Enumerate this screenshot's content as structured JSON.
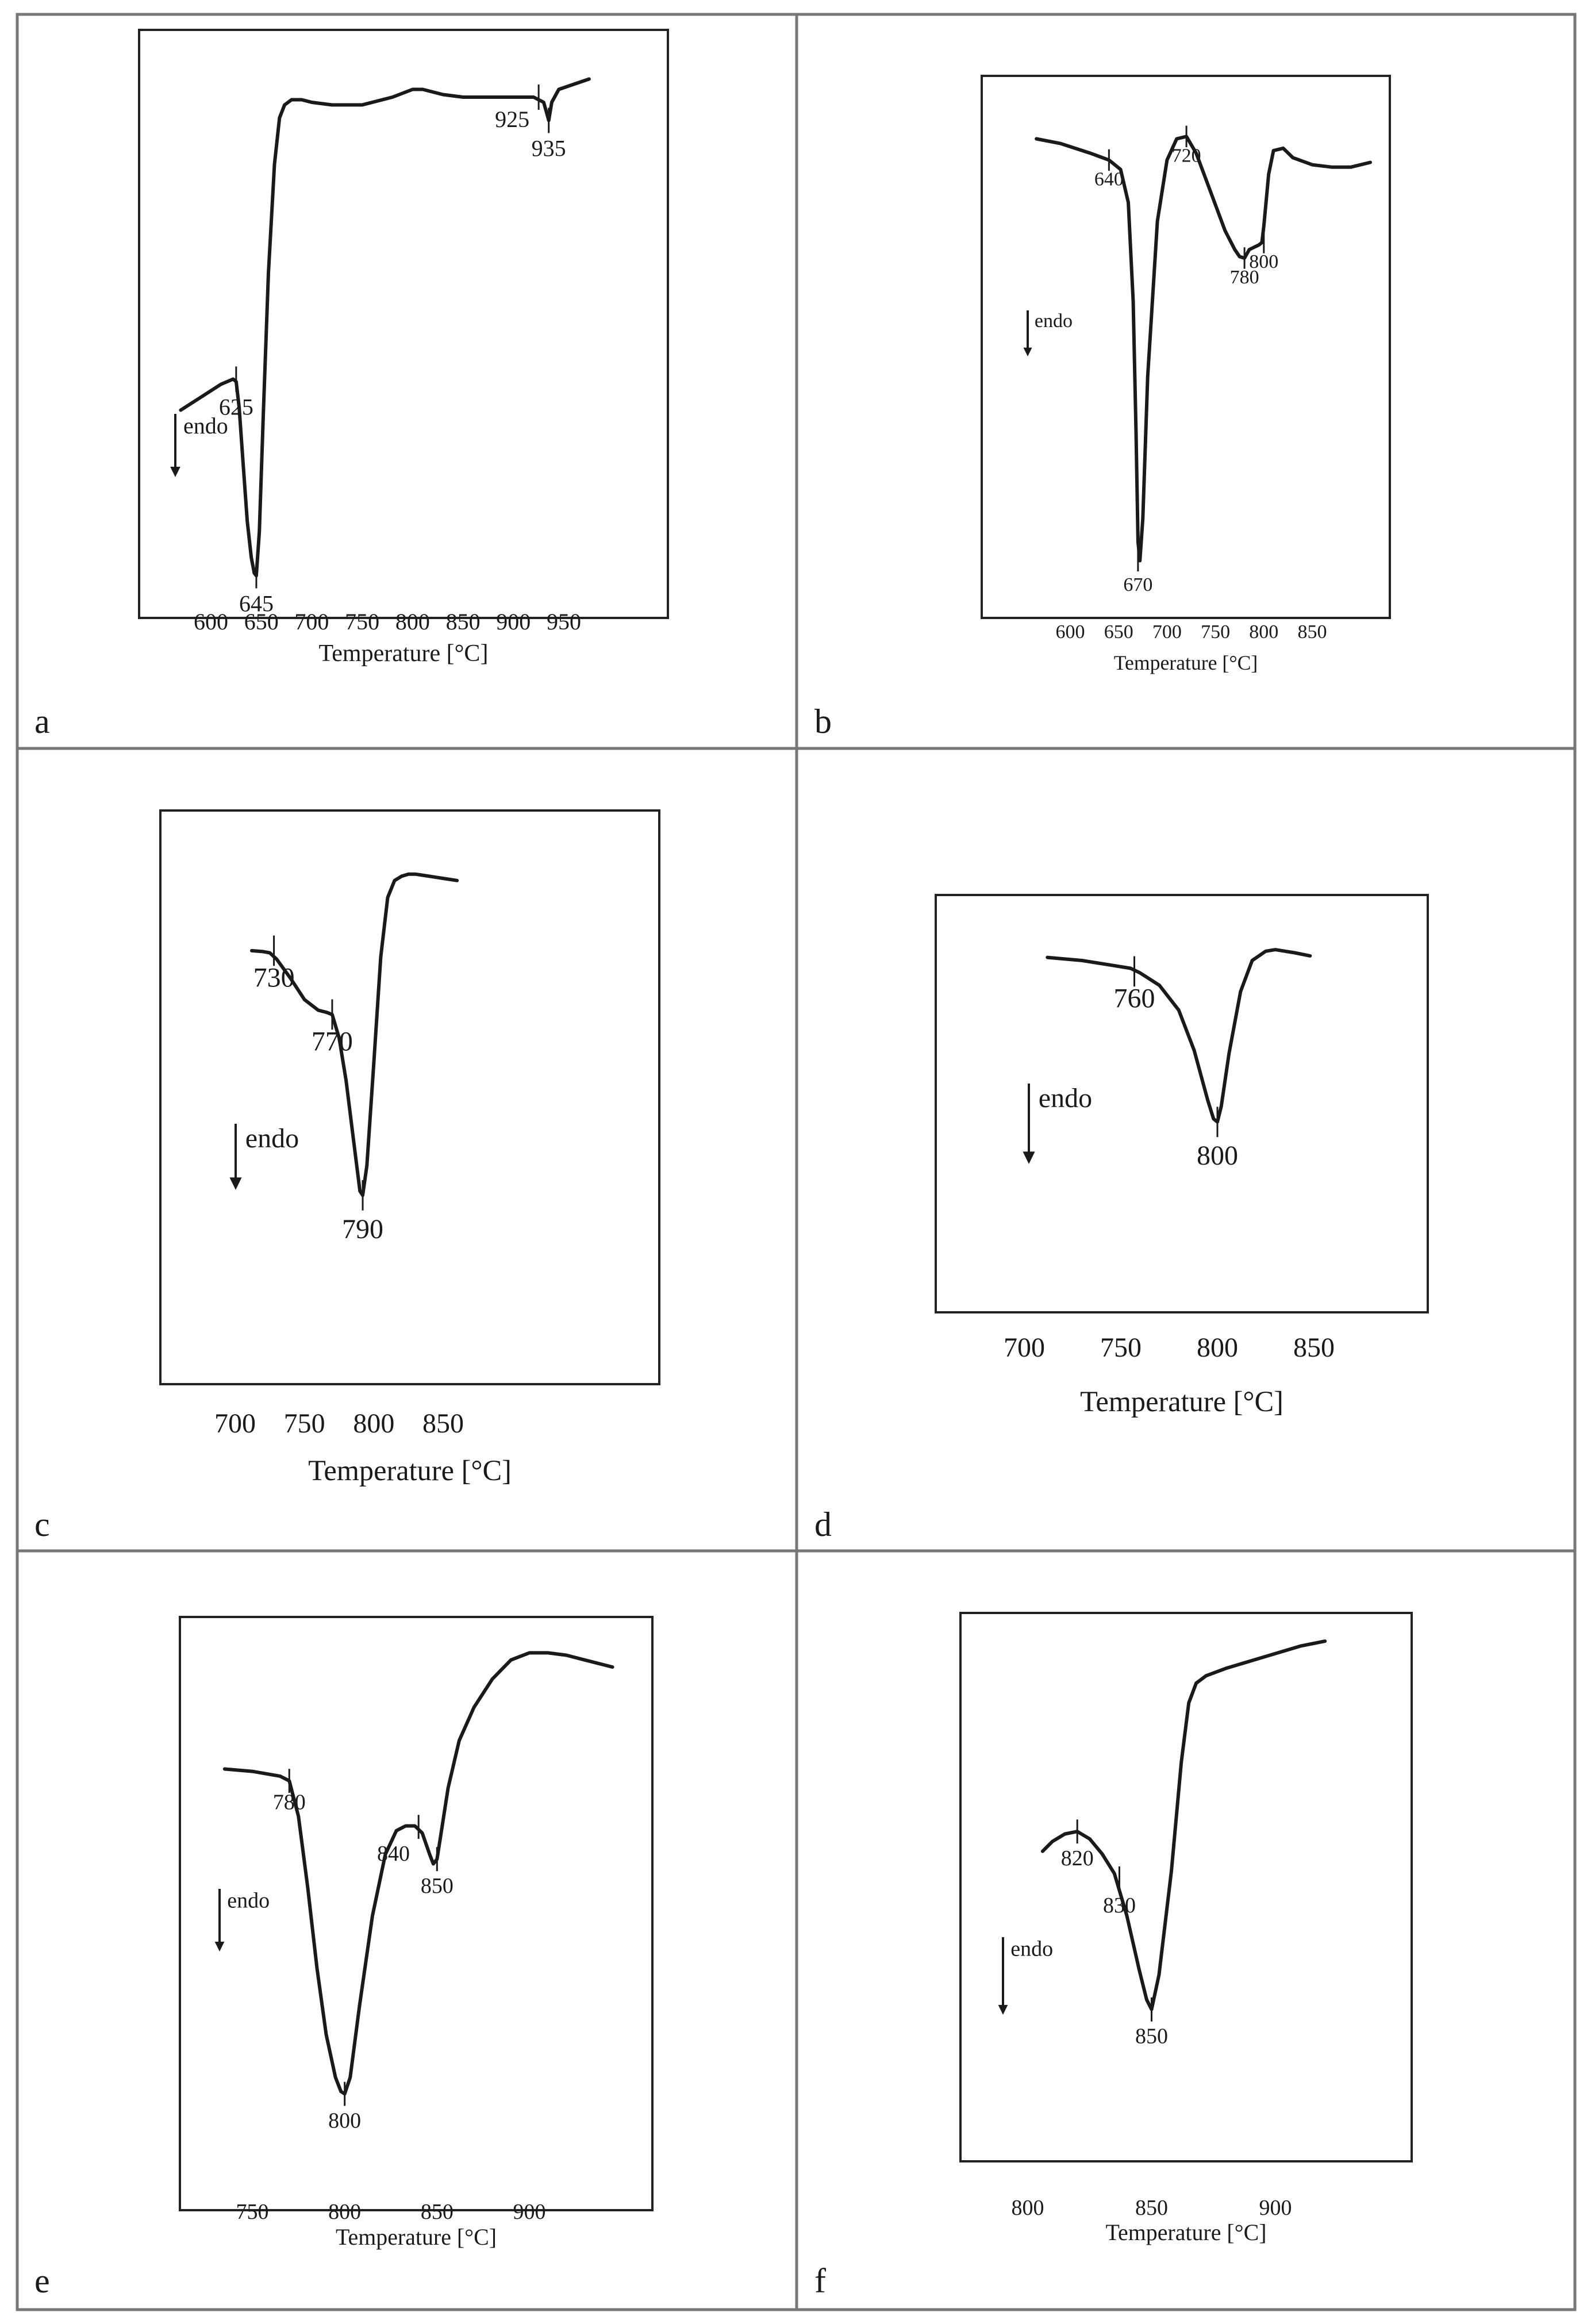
{
  "figure": {
    "endo_label": "endo",
    "colors": {
      "line": "#1a1a1a",
      "grid_border": "#777777",
      "frame": "#222222"
    }
  },
  "chart_data": [
    {
      "id": "a",
      "type": "line",
      "panel_label": "a",
      "xlabel": "Temperature  [°C]",
      "xlim": [
        570,
        985
      ],
      "x_ticks": [
        600,
        650,
        700,
        750,
        800,
        850,
        900,
        950
      ],
      "ylim": [
        0,
        1
      ],
      "series": [
        {
          "x": [
            570,
            590,
            610,
            622,
            625,
            628,
            632,
            636,
            640,
            643,
            645,
            648,
            652,
            657,
            663,
            668,
            673,
            680,
            690,
            700,
            720,
            750,
            780,
            800,
            810,
            830,
            850,
            880,
            900,
            920,
            925,
            930,
            935,
            938,
            945,
            960,
            975
          ],
          "y": [
            0.335,
            0.36,
            0.385,
            0.395,
            0.39,
            0.34,
            0.23,
            0.12,
            0.05,
            0.02,
            0.015,
            0.1,
            0.33,
            0.6,
            0.81,
            0.9,
            0.925,
            0.935,
            0.935,
            0.93,
            0.925,
            0.925,
            0.94,
            0.955,
            0.955,
            0.945,
            0.94,
            0.94,
            0.94,
            0.94,
            0.935,
            0.93,
            0.895,
            0.93,
            0.955,
            0.965,
            0.975
          ]
        }
      ],
      "annotations": [
        {
          "x": 625,
          "y": 0.395,
          "label": "625"
        },
        {
          "x": 645,
          "y": 0.015,
          "label": "645"
        },
        {
          "x": 925,
          "y": 0.94,
          "label": "925"
        },
        {
          "x": 935,
          "y": 0.895,
          "label": "935"
        }
      ]
    },
    {
      "id": "b",
      "type": "line",
      "panel_label": "b",
      "xlabel": "Temperature  [°C]",
      "xlim": [
        545,
        918
      ],
      "x_ticks": [
        600,
        650,
        700,
        750,
        800,
        850
      ],
      "ylim": [
        0,
        1
      ],
      "series": [
        {
          "x": [
            565,
            590,
            620,
            640,
            652,
            660,
            665,
            668,
            670,
            672,
            675,
            680,
            690,
            700,
            710,
            720,
            730,
            740,
            750,
            760,
            770,
            775,
            780,
            785,
            790,
            795,
            798,
            800,
            805,
            810,
            820,
            830,
            850,
            870,
            890,
            910
          ],
          "y": [
            0.925,
            0.915,
            0.895,
            0.88,
            0.86,
            0.79,
            0.58,
            0.3,
            0.07,
            0.03,
            0.12,
            0.42,
            0.75,
            0.88,
            0.925,
            0.93,
            0.895,
            0.84,
            0.785,
            0.73,
            0.69,
            0.675,
            0.672,
            0.69,
            0.695,
            0.7,
            0.705,
            0.74,
            0.85,
            0.9,
            0.905,
            0.885,
            0.87,
            0.865,
            0.865,
            0.875
          ]
        }
      ],
      "annotations": [
        {
          "x": 640,
          "y": 0.88,
          "label": "640"
        },
        {
          "x": 720,
          "y": 0.93,
          "label": "720"
        },
        {
          "x": 670,
          "y": 0.03,
          "label": "670"
        },
        {
          "x": 780,
          "y": 0.672,
          "label": "780"
        },
        {
          "x": 800,
          "y": 0.705,
          "label": "800"
        }
      ]
    },
    {
      "id": "c",
      "type": "line",
      "panel_label": "c",
      "xlabel": "Temperature  [°C]",
      "xlim": [
        667,
        908
      ],
      "x_ticks": [
        700,
        750,
        800,
        850
      ],
      "ylim": [
        0,
        1
      ],
      "series": [
        {
          "x": [
            712,
            720,
            725,
            730,
            740,
            750,
            760,
            766,
            770,
            775,
            780,
            785,
            790,
            792,
            795,
            800,
            805,
            810,
            815,
            820,
            825,
            830,
            840,
            850,
            860
          ],
          "y": [
            0.765,
            0.763,
            0.76,
            0.745,
            0.7,
            0.65,
            0.625,
            0.62,
            0.615,
            0.56,
            0.46,
            0.33,
            0.2,
            0.19,
            0.26,
            0.5,
            0.75,
            0.89,
            0.93,
            0.94,
            0.945,
            0.945,
            0.94,
            0.935,
            0.93
          ]
        }
      ],
      "annotations": [
        {
          "x": 728,
          "y": 0.765,
          "label": "730"
        },
        {
          "x": 770,
          "y": 0.615,
          "label": "770"
        },
        {
          "x": 792,
          "y": 0.19,
          "label": "790"
        }
      ]
    },
    {
      "id": "d",
      "type": "line",
      "panel_label": "d",
      "xlabel": "Temperature  [°C]",
      "xlim": [
        652,
        913
      ],
      "x_ticks": [
        700,
        750,
        800,
        850
      ],
      "ylim": [
        0,
        1
      ],
      "series": [
        {
          "x": [
            712,
            730,
            745,
            755,
            760,
            770,
            780,
            788,
            795,
            798,
            800,
            802,
            806,
            812,
            818,
            825,
            830,
            840,
            848
          ],
          "y": [
            0.86,
            0.85,
            0.835,
            0.825,
            0.81,
            0.77,
            0.69,
            0.56,
            0.4,
            0.34,
            0.33,
            0.38,
            0.55,
            0.75,
            0.85,
            0.88,
            0.885,
            0.875,
            0.865
          ]
        }
      ],
      "annotations": [
        {
          "x": 757,
          "y": 0.815,
          "label": "760"
        },
        {
          "x": 800,
          "y": 0.33,
          "label": "800"
        }
      ]
    },
    {
      "id": "e",
      "type": "line",
      "panel_label": "e",
      "xlabel": "Temperature  [°C]",
      "xlim": [
        722,
        961
      ],
      "x_ticks": [
        750,
        800,
        850,
        900
      ],
      "ylim": [
        0,
        1
      ],
      "series": [
        {
          "x": [
            735,
            750,
            765,
            770,
            775,
            780,
            785,
            790,
            795,
            798,
            800,
            803,
            808,
            815,
            822,
            828,
            833,
            838,
            842,
            846,
            848,
            850,
            852,
            856,
            862,
            870,
            880,
            890,
            900,
            910,
            920,
            930,
            945
          ],
          "y": [
            0.7,
            0.695,
            0.685,
            0.675,
            0.6,
            0.45,
            0.28,
            0.14,
            0.05,
            0.02,
            0.015,
            0.05,
            0.2,
            0.39,
            0.52,
            0.57,
            0.58,
            0.58,
            0.565,
            0.52,
            0.5,
            0.51,
            0.56,
            0.66,
            0.76,
            0.83,
            0.89,
            0.93,
            0.945,
            0.945,
            0.94,
            0.93,
            0.915
          ]
        }
      ],
      "annotations": [
        {
          "x": 770,
          "y": 0.675,
          "label": "780"
        },
        {
          "x": 800,
          "y": 0.015,
          "label": "800"
        },
        {
          "x": 840,
          "y": 0.578,
          "label": "840"
        },
        {
          "x": 850,
          "y": 0.51,
          "label": "850"
        }
      ]
    },
    {
      "id": "f",
      "type": "line",
      "panel_label": "f",
      "xlabel": "Temperature  [°C]",
      "xlim": [
        767,
        954
      ],
      "x_ticks": [
        800,
        850,
        900
      ],
      "ylim": [
        0,
        1
      ],
      "series": [
        {
          "x": [
            806,
            810,
            815,
            820,
            825,
            830,
            835,
            840,
            845,
            848,
            850,
            853,
            858,
            862,
            865,
            868,
            872,
            880,
            890,
            900,
            910,
            920
          ],
          "y": [
            0.54,
            0.56,
            0.575,
            0.58,
            0.565,
            0.535,
            0.495,
            0.41,
            0.3,
            0.24,
            0.22,
            0.29,
            0.5,
            0.72,
            0.84,
            0.88,
            0.895,
            0.91,
            0.925,
            0.94,
            0.955,
            0.965
          ]
        }
      ],
      "annotations": [
        {
          "x": 820,
          "y": 0.58,
          "label": "820"
        },
        {
          "x": 837,
          "y": 0.485,
          "label": "830"
        },
        {
          "x": 850,
          "y": 0.22,
          "label": "850"
        }
      ]
    }
  ]
}
